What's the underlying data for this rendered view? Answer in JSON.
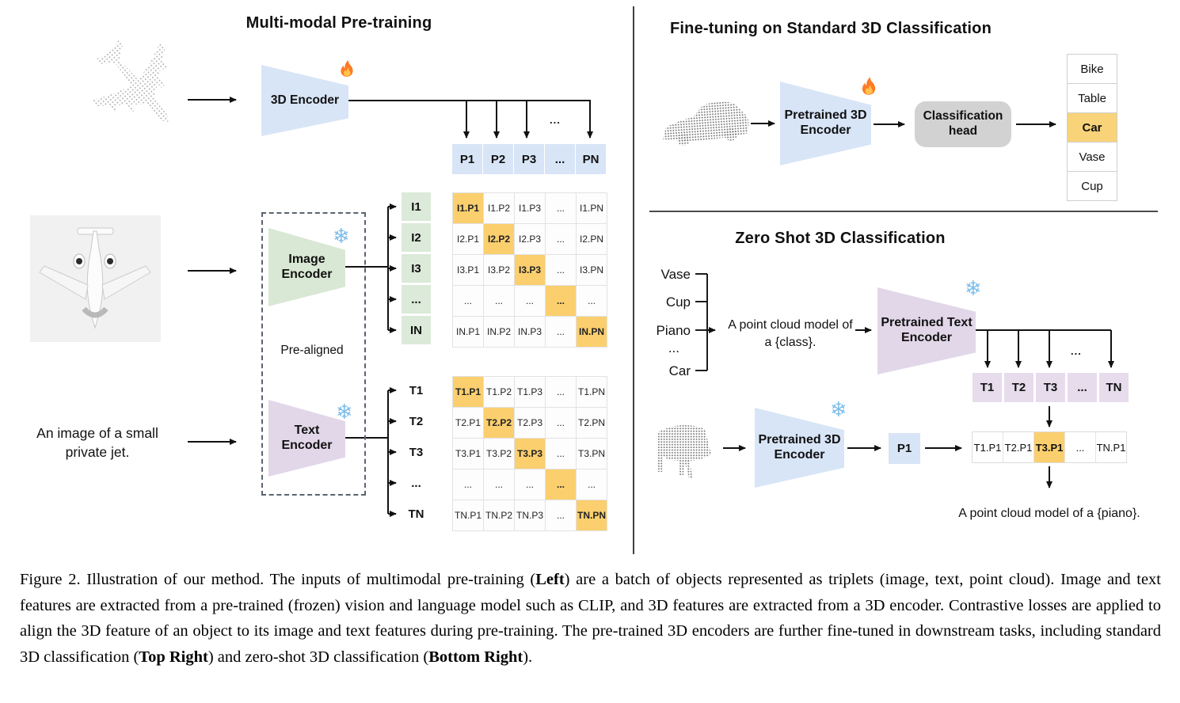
{
  "left": {
    "title": "Multi-modal Pre-training",
    "encoder3d_label": "3D Encoder",
    "image_encoder_label": "Image Encoder",
    "text_encoder_label": "Text Encoder",
    "pre_aligned_label": "Pre-aligned",
    "input_text_line1": "An image of a small",
    "input_text_line2": "private jet.",
    "branch_dots": "...",
    "p_row": [
      "P1",
      "P2",
      "P3",
      "...",
      "PN"
    ],
    "image_labels": [
      "I1",
      "I2",
      "I3",
      "...",
      "IN"
    ],
    "image_matrix": [
      [
        "I1.P1",
        "I1.P2",
        "I1.P3",
        "...",
        "I1.PN"
      ],
      [
        "I2.P1",
        "I2.P2",
        "I2.P3",
        "...",
        "I2.PN"
      ],
      [
        "I3.P1",
        "I3.P2",
        "I3.P3",
        "...",
        "I3.PN"
      ],
      [
        "...",
        "...",
        "...",
        "...",
        "..."
      ],
      [
        "IN.P1",
        "IN.P2",
        "IN.P3",
        "...",
        "IN.PN"
      ]
    ],
    "text_labels": [
      "T1",
      "T2",
      "T3",
      "...",
      "TN"
    ],
    "text_matrix": [
      [
        "T1.P1",
        "T1.P2",
        "T1.P3",
        "...",
        "T1.PN"
      ],
      [
        "T2.P1",
        "T2.P2",
        "T2.P3",
        "...",
        "T2.PN"
      ],
      [
        "T3.P1",
        "T3.P2",
        "T3.P3",
        "...",
        "T3.PN"
      ],
      [
        "...",
        "...",
        "...",
        "...",
        "..."
      ],
      [
        "TN.P1",
        "TN.P2",
        "TN.P3",
        "...",
        "TN.PN"
      ]
    ]
  },
  "top_right": {
    "title": "Fine-tuning on Standard 3D Classification",
    "encoder_label": "Pretrained 3D Encoder",
    "head_label": "Classification head",
    "classes": [
      "Bike",
      "Table",
      "Car",
      "Vase",
      "Cup"
    ],
    "predicted_index": 2
  },
  "bottom_right": {
    "title": "Zero Shot 3D Classification",
    "classes": [
      "Vase",
      "Cup",
      "Piano",
      "...",
      "Car"
    ],
    "prompt_line1": "A point cloud model of",
    "prompt_line2": "a {class}.",
    "text_encoder_label": "Pretrained Text Encoder",
    "encoder3d_label": "Pretrained 3D Encoder",
    "t_row": [
      "T1",
      "T2",
      "T3",
      "...",
      "TN"
    ],
    "p1_label": "P1",
    "sim_row": [
      "T1.P1",
      "T2.P1",
      "T3.P1",
      "...",
      "TN.P1"
    ],
    "sim_highlight_index": 2,
    "result_text": "A point cloud model of a {piano}.",
    "dots": "..."
  },
  "colors": {
    "highlight_orange": "#fbcf6e",
    "cell_blue": "#d8e5f7",
    "cell_green": "#dcead9",
    "cell_purple": "#e6dcec",
    "encoder_blue": "#d8e5f7",
    "encoder_green": "#d9e8d4",
    "encoder_purple": "#e2d7e9",
    "head_gray": "#d2d2d2"
  },
  "caption": {
    "segments": [
      {
        "t": "Figure 2. Illustration of our method.  The inputs of multimodal pre-training (",
        "b": 0
      },
      {
        "t": "Left",
        "b": 1
      },
      {
        "t": ") are a batch of objects represented as triplets (image, text, point cloud).  Image and text features are extracted from a pre-trained (frozen) vision and language model such as CLIP, and 3D features are extracted from a 3D encoder.  Contrastive losses are applied to align the 3D feature of an object to its image and text features during pre-training.  The pre-trained 3D encoders are further fine-tuned in downstream tasks, including standard 3D classification (",
        "b": 0
      },
      {
        "t": "Top Right",
        "b": 1
      },
      {
        "t": ") and zero-shot 3D classification (",
        "b": 0
      },
      {
        "t": "Bottom Right",
        "b": 1
      },
      {
        "t": ").",
        "b": 0
      }
    ]
  }
}
